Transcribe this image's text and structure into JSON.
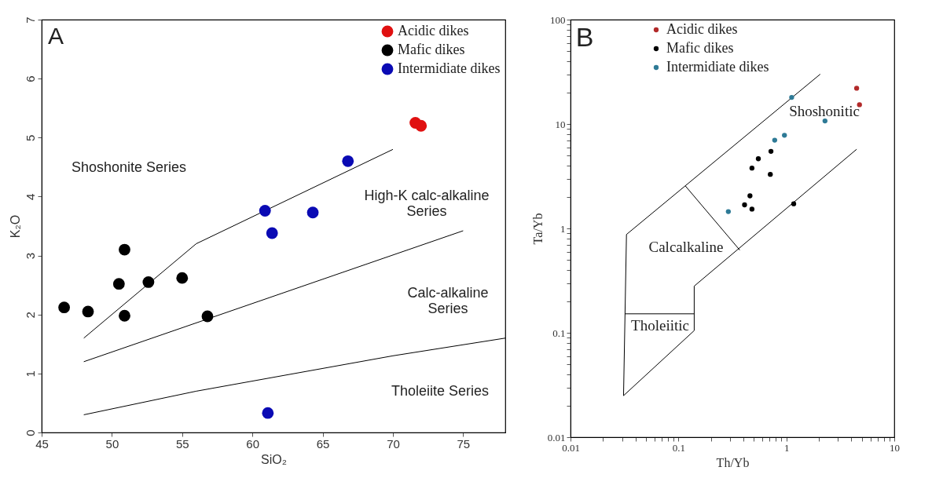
{
  "chart_data": [
    {
      "type": "scatter",
      "xlabel": "SiO₂",
      "ylabel": "K₂O",
      "xlim": [
        45,
        78
      ],
      "ylim": [
        0,
        7
      ],
      "xticks": [
        45,
        50,
        55,
        60,
        65,
        70,
        75
      ],
      "yticks": [
        0,
        1,
        2,
        3,
        4,
        5,
        6,
        7
      ],
      "grid": false,
      "legend": "top right",
      "marker": "circle",
      "series": [
        {
          "name": "Acidic dikes",
          "color": "#e01010",
          "x": [
            71.6,
            72.0
          ],
          "values": [
            5.25,
            5.2
          ]
        },
        {
          "name": "Mafic dikes",
          "color": "#000000",
          "x": [
            46.6,
            48.3,
            50.5,
            50.9,
            50.9,
            52.6,
            55.0,
            56.8
          ],
          "values": [
            2.12,
            2.05,
            2.52,
            3.1,
            1.98,
            2.55,
            2.62,
            1.97
          ]
        },
        {
          "name": "Intermidiate dikes",
          "color": "#0a0ab4",
          "x": [
            60.9,
            61.4,
            64.3,
            66.8,
            61.1
          ],
          "values": [
            3.76,
            3.38,
            3.73,
            4.6,
            0.33
          ]
        },
        {
          "type": "line",
          "marker": "none",
          "color": "#000000",
          "line_style": "solid",
          "x": [
            48,
            56,
            70
          ],
          "values": [
            1.6,
            3.2,
            4.8
          ]
        },
        {
          "type": "line",
          "marker": "none",
          "color": "#000000",
          "line_style": "solid",
          "x": [
            48,
            75
          ],
          "values": [
            1.2,
            3.42
          ]
        },
        {
          "type": "line",
          "marker": "none",
          "color": "#000000",
          "line_style": "solid",
          "x": [
            48,
            56,
            70,
            78
          ],
          "values": [
            0.3,
            0.7,
            1.3,
            1.6
          ]
        }
      ],
      "annotations": [
        "A",
        "Shoshonite Series",
        "High-K calc-alkaline\nSeries",
        "Calc-alkaline\nSeries",
        "Tholeiite Series"
      ]
    },
    {
      "type": "scatter",
      "xlabel": "Th/Yb",
      "ylabel": "Ta/Yb",
      "log": "xy",
      "xlim": [
        0.01,
        10
      ],
      "ylim": [
        0.01,
        100
      ],
      "xticks": [
        0.01,
        {
          "value": 0.02,
          "label": null
        },
        {
          "value": 0.03,
          "label": null
        },
        {
          "value": 0.04,
          "label": null
        },
        {
          "value": 0.05,
          "label": null
        },
        {
          "value": 0.06,
          "label": null
        },
        {
          "value": 0.07,
          "label": null
        },
        {
          "value": 0.08,
          "label": null
        },
        {
          "value": 0.09,
          "label": null
        },
        0.1,
        {
          "value": 0.2,
          "label": null
        },
        {
          "value": 0.3,
          "label": null
        },
        {
          "value": 0.4,
          "label": null
        },
        {
          "value": 0.5,
          "label": null
        },
        {
          "value": 0.6,
          "label": null
        },
        {
          "value": 0.7,
          "label": null
        },
        {
          "value": 0.8,
          "label": null
        },
        {
          "value": 0.9,
          "label": null
        },
        1,
        {
          "value": 2,
          "label": null
        },
        {
          "value": 3,
          "label": null
        },
        {
          "value": 4,
          "label": null
        },
        {
          "value": 5,
          "label": null
        },
        {
          "value": 6,
          "label": null
        },
        {
          "value": 7,
          "label": null
        },
        {
          "value": 8,
          "label": null
        },
        {
          "value": 9,
          "label": null
        },
        10
      ],
      "yticks": [
        0.01,
        {
          "value": 0.02,
          "label": null
        },
        {
          "value": 0.03,
          "label": null
        },
        {
          "value": 0.04,
          "label": null
        },
        {
          "value": 0.05,
          "label": null
        },
        {
          "value": 0.06,
          "label": null
        },
        {
          "value": 0.07,
          "label": null
        },
        {
          "value": 0.08,
          "label": null
        },
        {
          "value": 0.09,
          "label": null
        },
        0.1,
        {
          "value": 0.2,
          "label": null
        },
        {
          "value": 0.3,
          "label": null
        },
        {
          "value": 0.4,
          "label": null
        },
        {
          "value": 0.5,
          "label": null
        },
        {
          "value": 0.6,
          "label": null
        },
        {
          "value": 0.7,
          "label": null
        },
        {
          "value": 0.8,
          "label": null
        },
        {
          "value": 0.9,
          "label": null
        },
        1,
        {
          "value": 2,
          "label": null
        },
        {
          "value": 3,
          "label": null
        },
        {
          "value": 4,
          "label": null
        },
        {
          "value": 5,
          "label": null
        },
        {
          "value": 6,
          "label": null
        },
        {
          "value": 7,
          "label": null
        },
        {
          "value": 8,
          "label": null
        },
        {
          "value": 9,
          "label": null
        },
        10,
        {
          "value": 20,
          "label": null
        },
        {
          "value": 30,
          "label": null
        },
        {
          "value": 40,
          "label": null
        },
        {
          "value": 50,
          "label": null
        },
        {
          "value": 60,
          "label": null
        },
        {
          "value": 70,
          "label": null
        },
        {
          "value": 80,
          "label": null
        },
        {
          "value": 90,
          "label": null
        },
        100
      ],
      "grid": false,
      "legend": "top left",
      "marker": "circle",
      "series": [
        {
          "name": "Acidic dikes",
          "color": "#b22a2a",
          "x": [
            4.48,
            4.76
          ],
          "values": [
            22.0,
            15.3
          ]
        },
        {
          "name": "Mafic dikes",
          "color": "#000000",
          "x": [
            0.48,
            0.55,
            0.72,
            0.71,
            0.46,
            0.41,
            0.48,
            1.17
          ],
          "values": [
            3.78,
            4.65,
            5.47,
            3.29,
            2.05,
            1.68,
            1.53,
            1.72
          ]
        },
        {
          "name": "Intermidiate dikes",
          "color": "#2e7a96",
          "x": [
            1.12,
            2.28,
            0.78,
            0.96,
            0.29
          ],
          "values": [
            18.0,
            10.7,
            7.0,
            7.8,
            1.45
          ]
        },
        {
          "type": "line",
          "marker": "none",
          "color": "#000000",
          "line_style": "solid",
          "x": [
            2.06,
            0.033,
            0.031,
            0.14,
            0.14,
            4.48
          ],
          "values": [
            30,
            0.875,
            0.025,
            0.105,
            0.28,
            5.73
          ]
        },
        {
          "type": "line",
          "marker": "none",
          "color": "#000000",
          "line_style": "solid",
          "x": [
            0.032,
            0.14
          ],
          "values": [
            0.152,
            0.152
          ]
        },
        {
          "type": "line",
          "marker": "none",
          "color": "#000000",
          "line_style": "solid",
          "x": [
            0.116,
            0.37
          ],
          "values": [
            2.55,
            0.62
          ]
        }
      ],
      "annotations": [
        "B",
        "Shoshonitic",
        "Calcalkaline",
        "Tholeiitic"
      ]
    }
  ]
}
